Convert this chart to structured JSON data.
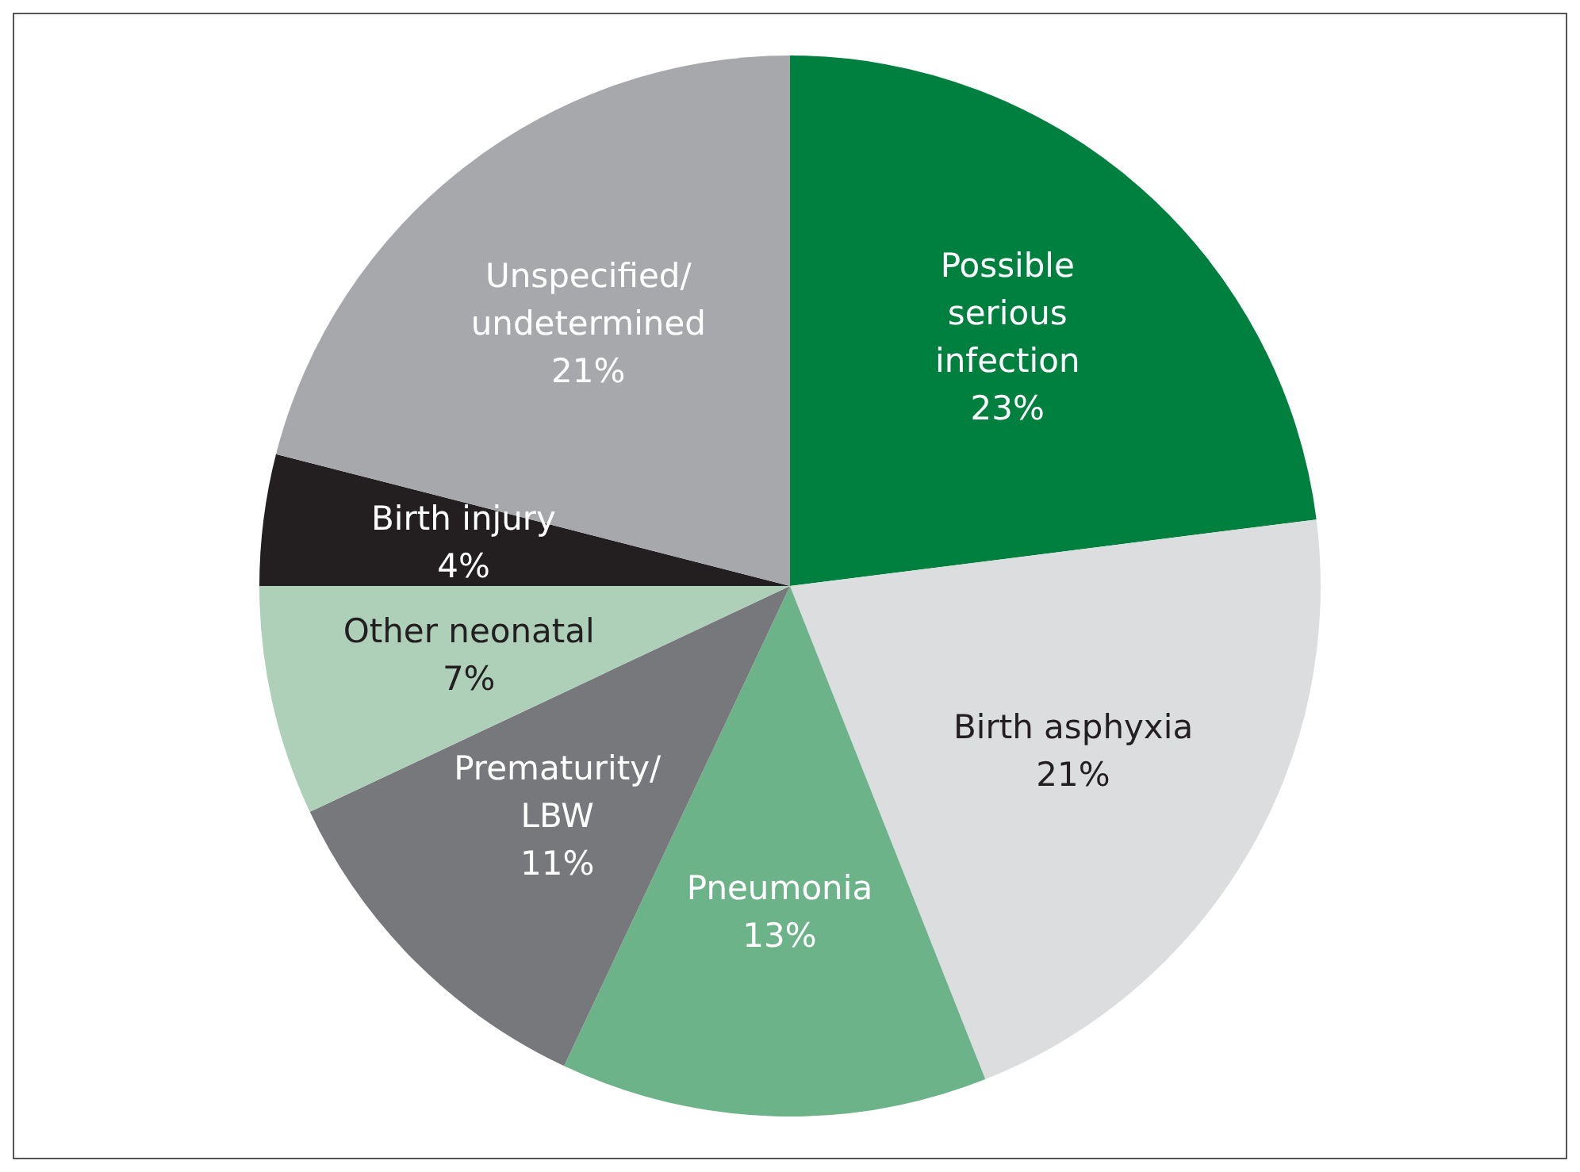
{
  "chart_data": {
    "type": "pie",
    "categories": [
      "Possible\nserious\ninfection",
      "Birth asphyxia",
      "Pneumonia",
      "Prematurity/\nLBW",
      "Other neonatal",
      "Birth injury",
      "Unspecified/\nundetermined"
    ],
    "values": [
      23,
      21,
      13,
      11,
      7,
      4,
      21
    ],
    "colors": [
      "#00803f",
      "#dcdddf",
      "#6db38a",
      "#77787b",
      "#aecfb8",
      "#231f20",
      "#a7a8ab"
    ],
    "value_labels": [
      "23%",
      "21%",
      "13%",
      "11%",
      "7%",
      "4%",
      "21%"
    ],
    "legend": false
  }
}
